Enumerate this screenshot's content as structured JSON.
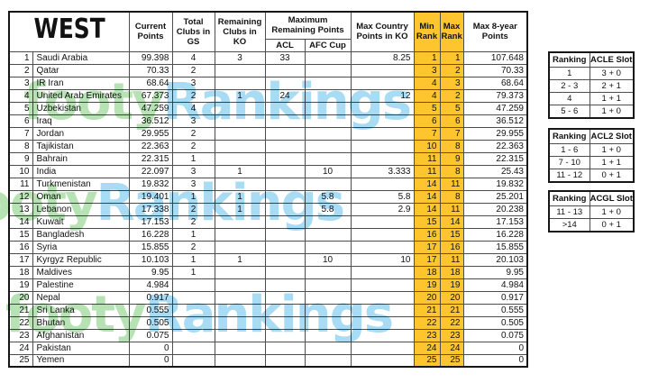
{
  "colors": {
    "rank_highlight": "#FEC52F",
    "grid_line": "#4E4E4E",
    "watermark_green": "#B7E2B3",
    "watermark_blue": "#A8DCF5"
  },
  "watermark": {
    "green_text": "footy",
    "blue_text": "Rankings"
  },
  "chart_data": [
    {
      "type": "table",
      "name": "west-country-ranking",
      "title": "WEST",
      "headers": {
        "current_points": "Current Points",
        "total_clubs_gs": "Total Clubs in GS",
        "remaining_clubs_ko": "Remaining Clubs in KO",
        "max_remaining_group": "Maximum Remaining Points",
        "acl": "ACL",
        "afc_cup": "AFC Cup",
        "max_country_ko": "Max Country Points in KO",
        "min_rank": "Min Rank",
        "max_rank": "Max Rank",
        "max_8yr": "Max 8-year Points"
      },
      "columns": [
        "#",
        "Country",
        "Current Points",
        "Total Clubs in GS",
        "Remaining Clubs in KO",
        "ACL",
        "AFC Cup",
        "Max Country Points in KO",
        "Min Rank",
        "Max Rank",
        "Max 8-year Points"
      ],
      "rows": [
        [
          "1",
          "Saudi Arabia",
          "99.398",
          "4",
          "3",
          "33",
          "",
          "8.25",
          "1",
          "1",
          "107.648"
        ],
        [
          "2",
          "Qatar",
          "70.33",
          "2",
          "",
          "",
          "",
          "",
          "3",
          "2",
          "70.33"
        ],
        [
          "3",
          "IR Iran",
          "68.64",
          "3",
          "",
          "",
          "",
          "",
          "4",
          "3",
          "68.64"
        ],
        [
          "4",
          "United Arab Emirates",
          "67.373",
          "2",
          "1",
          "24",
          "",
          "12",
          "4",
          "2",
          "79.373"
        ],
        [
          "5",
          "Uzbekistan",
          "47.259",
          "4",
          "",
          "",
          "",
          "",
          "5",
          "5",
          "47.259"
        ],
        [
          "6",
          "Iraq",
          "36.512",
          "3",
          "",
          "",
          "",
          "",
          "6",
          "6",
          "36.512"
        ],
        [
          "7",
          "Jordan",
          "29.955",
          "2",
          "",
          "",
          "",
          "",
          "7",
          "7",
          "29.955"
        ],
        [
          "8",
          "Tajikistan",
          "22.363",
          "2",
          "",
          "",
          "",
          "",
          "10",
          "8",
          "22.363"
        ],
        [
          "9",
          "Bahrain",
          "22.315",
          "1",
          "",
          "",
          "",
          "",
          "11",
          "9",
          "22.315"
        ],
        [
          "10",
          "India",
          "22.097",
          "3",
          "1",
          "",
          "10",
          "3.333",
          "11",
          "8",
          "25.43"
        ],
        [
          "11",
          "Turkmenistan",
          "19.832",
          "3",
          "",
          "",
          "",
          "",
          "14",
          "11",
          "19.832"
        ],
        [
          "12",
          "Oman",
          "19.401",
          "1",
          "1",
          "",
          "5.8",
          "5.8",
          "14",
          "8",
          "25.201"
        ],
        [
          "13",
          "Lebanon",
          "17.338",
          "2",
          "1",
          "",
          "5.8",
          "2.9",
          "14",
          "11",
          "20.238"
        ],
        [
          "14",
          "Kuwait",
          "17.153",
          "2",
          "",
          "",
          "",
          "",
          "15",
          "14",
          "17.153"
        ],
        [
          "15",
          "Bangladesh",
          "16.228",
          "1",
          "",
          "",
          "",
          "",
          "16",
          "15",
          "16.228"
        ],
        [
          "16",
          "Syria",
          "15.855",
          "2",
          "",
          "",
          "",
          "",
          "17",
          "16",
          "15.855"
        ],
        [
          "17",
          "Kyrgyz Republic",
          "10.103",
          "1",
          "1",
          "",
          "10",
          "10",
          "17",
          "11",
          "20.103"
        ],
        [
          "18",
          "Maldives",
          "9.95",
          "1",
          "",
          "",
          "",
          "",
          "18",
          "18",
          "9.95"
        ],
        [
          "19",
          "Palestine",
          "4.984",
          "",
          "",
          "",
          "",
          "",
          "19",
          "19",
          "4.984"
        ],
        [
          "20",
          "Nepal",
          "0.917",
          "",
          "",
          "",
          "",
          "",
          "20",
          "20",
          "0.917"
        ],
        [
          "21",
          "Sri Lanka",
          "0.555",
          "",
          "",
          "",
          "",
          "",
          "21",
          "21",
          "0.555"
        ],
        [
          "22",
          "Bhutan",
          "0.505",
          "",
          "",
          "",
          "",
          "",
          "22",
          "22",
          "0.505"
        ],
        [
          "23",
          "Afghanistan",
          "0.075",
          "",
          "",
          "",
          "",
          "",
          "23",
          "23",
          "0.075"
        ],
        [
          "24",
          "Pakistan",
          "0",
          "",
          "",
          "",
          "",
          "",
          "24",
          "24",
          "0"
        ],
        [
          "25",
          "Yemen",
          "0",
          "",
          "",
          "",
          "",
          "",
          "25",
          "25",
          "0"
        ]
      ]
    },
    {
      "type": "table",
      "name": "acle-slot-table",
      "headers": [
        "Ranking",
        "ACLE Slot"
      ],
      "rows": [
        [
          "1",
          "3 + 0"
        ],
        [
          "2 - 3",
          "2 + 1"
        ],
        [
          "4",
          "1 + 1"
        ],
        [
          "5 - 6",
          "1 + 0"
        ]
      ]
    },
    {
      "type": "table",
      "name": "acl2-slot-table",
      "headers": [
        "Ranking",
        "ACL2 Slot"
      ],
      "rows": [
        [
          "1 - 6",
          "1 + 0"
        ],
        [
          "7 - 10",
          "1 + 1"
        ],
        [
          "11 - 12",
          "0 + 1"
        ]
      ]
    },
    {
      "type": "table",
      "name": "acgl-slot-table",
      "headers": [
        "Ranking",
        "ACGL Slot"
      ],
      "rows": [
        [
          "11 - 13",
          "1 + 0"
        ],
        [
          ">14",
          "0 + 1"
        ]
      ]
    }
  ]
}
